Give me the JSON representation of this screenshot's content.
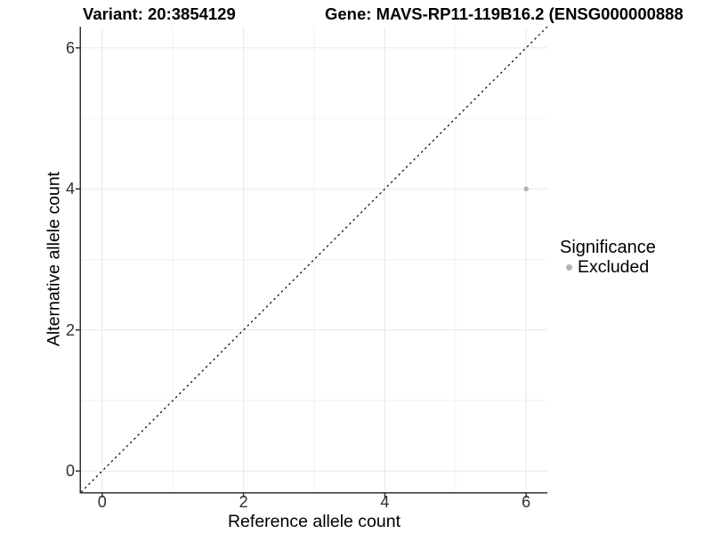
{
  "figure": {
    "background": "#ffffff"
  },
  "chart_data": {
    "type": "scatter",
    "title_left": "Variant: 20:3854129",
    "title_right": "Gene: MAVS-RP11-119B16.2 (ENSG000000888",
    "xlabel": "Reference allele count",
    "ylabel": "Alternative allele count",
    "xlim": [
      -0.3,
      6.3
    ],
    "ylim": [
      -0.3,
      6.3
    ],
    "x_ticks": [
      0,
      2,
      4,
      6
    ],
    "y_ticks": [
      0,
      2,
      4,
      6
    ],
    "minor_ticks": [
      1,
      3,
      5
    ],
    "grid": true,
    "points": [
      {
        "x": 6,
        "y": 4,
        "series": "Excluded"
      }
    ],
    "point_color": "#b3b3b3",
    "point_radius_px": 2.8,
    "reference_line": {
      "slope": 1,
      "intercept": 0,
      "style": "dashed",
      "color": "#000000"
    },
    "legend": {
      "title": "Significance",
      "position": "right",
      "entries": [
        {
          "label": "Excluded",
          "color": "#b3b3b3"
        }
      ]
    }
  },
  "colors": {
    "grid_major": "#e8e8e8",
    "grid_minor": "#f2f2f2",
    "axis_line": "#333333",
    "tick_text": "#303030"
  }
}
